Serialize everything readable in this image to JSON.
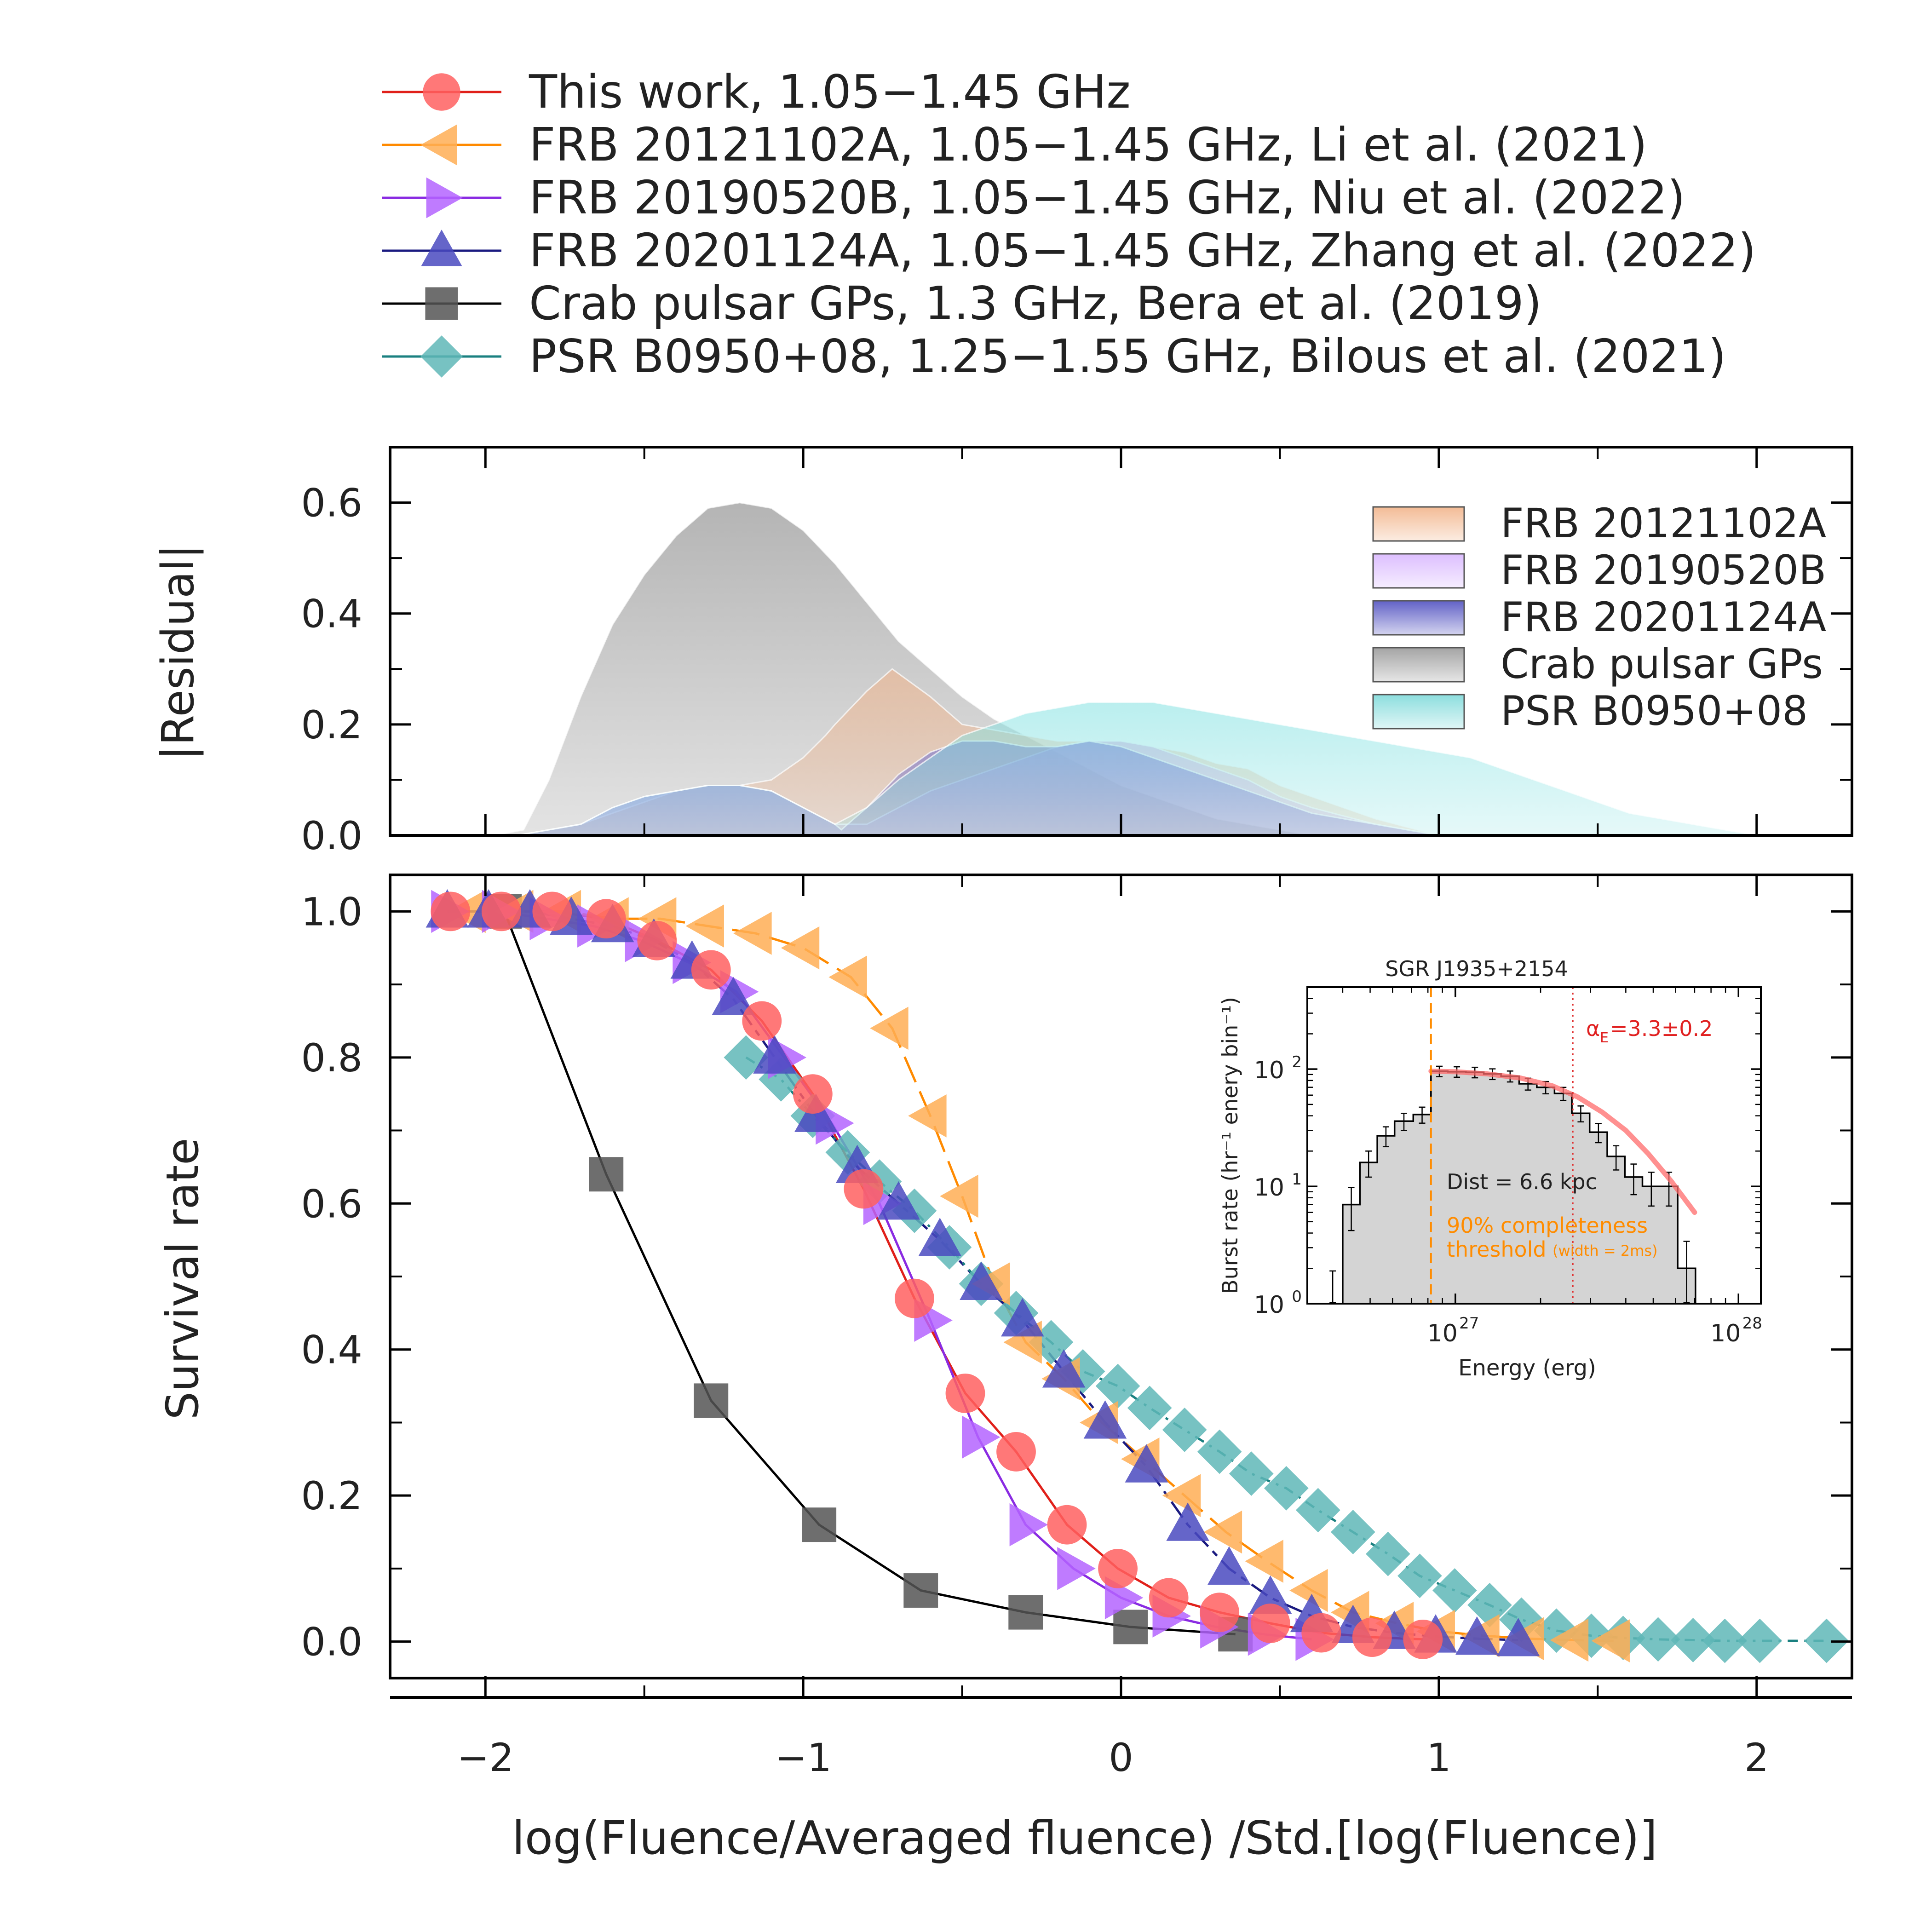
{
  "chart_data": [
    {
      "type": "area",
      "name": "residual-panel",
      "ylabel": "|Residual|",
      "xlim": [
        -2.3,
        2.3
      ],
      "ylim": [
        0.0,
        0.7
      ],
      "yticks": [
        0.0,
        0.2,
        0.4,
        0.6
      ],
      "ytick_labels": [
        "0.0",
        "0.2",
        "0.4",
        "0.6"
      ],
      "legend": [
        {
          "name": "FRB 20121102A",
          "color": "#f2b48a"
        },
        {
          "name": "FRB 20190520B",
          "color": "#d9b7ff"
        },
        {
          "name": "FRB 20201124A",
          "color": "#5050c0"
        },
        {
          "name": "Crab pulsar GPs",
          "color": "#9a9a9a"
        },
        {
          "name": "PSR B0950+08",
          "color": "#7fdada"
        }
      ],
      "series": [
        {
          "name": "Crab pulsar GPs",
          "color": "#a8a8a8",
          "x": [
            -1.97,
            -1.88,
            -1.8,
            -1.7,
            -1.6,
            -1.5,
            -1.4,
            -1.3,
            -1.2,
            -1.1,
            -1.0,
            -0.9,
            -0.8,
            -0.7,
            -0.6,
            -0.5,
            -0.4,
            -0.3,
            -0.2,
            -0.1,
            0.0,
            0.1,
            0.2,
            0.3,
            0.4,
            0.5,
            0.6
          ],
          "y": [
            0.0,
            0.01,
            0.1,
            0.25,
            0.38,
            0.47,
            0.54,
            0.59,
            0.6,
            0.59,
            0.55,
            0.49,
            0.42,
            0.35,
            0.3,
            0.25,
            0.21,
            0.18,
            0.15,
            0.12,
            0.09,
            0.07,
            0.05,
            0.03,
            0.02,
            0.01,
            0.0
          ]
        },
        {
          "name": "FRB 20121102A",
          "color": "#f2b48a",
          "x": [
            -1.97,
            -1.9,
            -1.7,
            -1.6,
            -1.5,
            -1.4,
            -1.3,
            -1.2,
            -1.1,
            -1.0,
            -0.93,
            -0.9,
            -0.8,
            -0.72,
            -0.6,
            -0.5,
            -0.4,
            -0.3,
            -0.2,
            -0.1,
            0.0,
            0.1,
            0.2,
            0.3,
            0.4,
            0.5,
            0.6,
            0.8,
            1.0
          ],
          "y": [
            0.0,
            0.0,
            0.02,
            0.04,
            0.06,
            0.08,
            0.09,
            0.09,
            0.1,
            0.14,
            0.18,
            0.2,
            0.26,
            0.3,
            0.25,
            0.2,
            0.19,
            0.18,
            0.17,
            0.17,
            0.17,
            0.16,
            0.15,
            0.13,
            0.12,
            0.09,
            0.07,
            0.03,
            0.0
          ]
        },
        {
          "name": "FRB 20190520B",
          "color": "#d9b7ff",
          "x": [
            -1.97,
            -1.9,
            -1.7,
            -1.6,
            -1.5,
            -1.4,
            -1.3,
            -1.2,
            -1.1,
            -1.0,
            -0.9,
            -0.8,
            -0.7,
            -0.6,
            -0.5,
            -0.4,
            -0.3,
            -0.2,
            -0.1,
            0.0,
            0.1,
            0.2,
            0.3,
            0.4,
            0.5,
            0.6,
            0.8,
            1.0
          ],
          "y": [
            0.0,
            0.0,
            0.02,
            0.05,
            0.07,
            0.08,
            0.09,
            0.09,
            0.08,
            0.05,
            0.02,
            0.02,
            0.05,
            0.08,
            0.1,
            0.12,
            0.14,
            0.16,
            0.17,
            0.17,
            0.16,
            0.14,
            0.12,
            0.1,
            0.07,
            0.05,
            0.02,
            0.0
          ]
        },
        {
          "name": "FRB 20201124A",
          "color": "#6a6ad0",
          "x": [
            -1.97,
            -1.9,
            -1.7,
            -1.6,
            -1.5,
            -1.4,
            -1.3,
            -1.2,
            -1.1,
            -1.0,
            -0.9,
            -0.88,
            -0.8,
            -0.7,
            -0.6,
            -0.5,
            -0.4,
            -0.3,
            -0.2,
            -0.1,
            0.0,
            0.1,
            0.2,
            0.3,
            0.4,
            0.5,
            0.6,
            0.8,
            1.0
          ],
          "y": [
            0.0,
            0.0,
            0.02,
            0.05,
            0.07,
            0.08,
            0.09,
            0.09,
            0.08,
            0.05,
            0.02,
            0.01,
            0.05,
            0.11,
            0.15,
            0.17,
            0.17,
            0.16,
            0.16,
            0.17,
            0.16,
            0.14,
            0.12,
            0.1,
            0.08,
            0.06,
            0.04,
            0.02,
            0.0
          ]
        },
        {
          "name": "PSR B0950+08",
          "color": "#86e2e2",
          "x": [
            -1.97,
            -1.9,
            -1.7,
            -1.6,
            -1.5,
            -1.4,
            -1.3,
            -1.2,
            -1.1,
            -1.0,
            -0.9,
            -0.8,
            -0.7,
            -0.6,
            -0.5,
            -0.4,
            -0.3,
            -0.2,
            -0.1,
            0.0,
            0.1,
            0.2,
            0.3,
            0.4,
            0.5,
            0.6,
            0.7,
            0.8,
            0.9,
            1.0,
            1.1,
            1.2,
            1.3,
            1.4,
            1.5,
            1.6,
            1.7,
            1.8,
            1.9,
            2.0
          ],
          "y": [
            0.0,
            0.0,
            0.02,
            0.05,
            0.07,
            0.08,
            0.09,
            0.09,
            0.08,
            0.05,
            0.02,
            0.05,
            0.1,
            0.14,
            0.18,
            0.2,
            0.22,
            0.23,
            0.24,
            0.24,
            0.24,
            0.23,
            0.22,
            0.21,
            0.2,
            0.19,
            0.18,
            0.17,
            0.16,
            0.15,
            0.14,
            0.12,
            0.1,
            0.08,
            0.06,
            0.04,
            0.03,
            0.02,
            0.01,
            0.0
          ]
        }
      ]
    },
    {
      "type": "line",
      "name": "survival-panel",
      "xlabel": "log(Fluence/Averaged fluence) /Std.[log(Fluence)]",
      "ylabel": "Survival rate",
      "xlim": [
        -2.3,
        2.3
      ],
      "ylim": [
        -0.05,
        1.05
      ],
      "xticks": [
        -2,
        -1,
        0,
        1,
        2
      ],
      "xtick_labels": [
        "−2",
        "−1",
        "0",
        "1",
        "2"
      ],
      "yticks": [
        0.0,
        0.2,
        0.4,
        0.6,
        0.8,
        1.0
      ],
      "ytick_labels": [
        "0.0",
        "0.2",
        "0.4",
        "0.6",
        "0.8",
        "1.0"
      ],
      "series": [
        {
          "name": "This work, 1.05−1.45 GHz",
          "marker": "circle",
          "color": "#ff6060",
          "line": "#e0201a",
          "dash": "",
          "x": [
            -2.11,
            -1.95,
            -1.79,
            -1.62,
            -1.46,
            -1.29,
            -1.13,
            -0.97,
            -0.81,
            -0.65,
            -0.49,
            -0.33,
            -0.17,
            -0.01,
            0.15,
            0.31,
            0.47,
            0.63,
            0.79,
            0.95
          ],
          "y": [
            1.0,
            1.0,
            1.0,
            0.99,
            0.96,
            0.92,
            0.85,
            0.75,
            0.62,
            0.47,
            0.34,
            0.26,
            0.16,
            0.1,
            0.06,
            0.04,
            0.025,
            0.012,
            0.006,
            0.003
          ]
        },
        {
          "name": "FRB 20121102A, 1.05−1.45 GHz, Li et al. (2021)",
          "marker": "triangle-left",
          "color": "#ffae55",
          "line": "#ff8a00",
          "dash": "60,22",
          "x": [
            -2.05,
            -1.9,
            -1.75,
            -1.6,
            -1.45,
            -1.3,
            -1.15,
            -1.0,
            -0.85,
            -0.72,
            -0.6,
            -0.5,
            -0.4,
            -0.3,
            -0.18,
            -0.06,
            0.07,
            0.2,
            0.33,
            0.46,
            0.6,
            0.73,
            0.87,
            1.0,
            1.14,
            1.28,
            1.42,
            1.55
          ],
          "y": [
            1.0,
            1.0,
            1.0,
            0.99,
            0.99,
            0.98,
            0.97,
            0.95,
            0.91,
            0.84,
            0.72,
            0.61,
            0.49,
            0.41,
            0.36,
            0.3,
            0.25,
            0.2,
            0.15,
            0.11,
            0.07,
            0.04,
            0.025,
            0.014,
            0.008,
            0.004,
            0.002,
            0.001
          ]
        },
        {
          "name": "FRB 20190520B, 1.05−1.45 GHz, Niu et al. (2022)",
          "marker": "triangle-right",
          "color": "#b464ff",
          "line": "#8a2be2",
          "dash": "",
          "x": [
            -2.12,
            -1.96,
            -1.81,
            -1.66,
            -1.51,
            -1.36,
            -1.21,
            -1.06,
            -0.91,
            -0.76,
            -0.6,
            -0.45,
            -0.3,
            -0.15,
            0.0,
            0.15,
            0.3,
            0.45,
            0.6
          ],
          "y": [
            1.0,
            1.0,
            0.99,
            0.98,
            0.96,
            0.93,
            0.89,
            0.8,
            0.71,
            0.6,
            0.44,
            0.28,
            0.16,
            0.1,
            0.06,
            0.035,
            0.02,
            0.01,
            0.003
          ]
        },
        {
          "name": "FRB 20201124A, 1.05−1.45 GHz, Zhang et al. (2022)",
          "marker": "triangle-up",
          "color": "#4a4ac0",
          "line": "#1a1a80",
          "dash": "14,14,42,14",
          "x": [
            -2.12,
            -1.99,
            -1.86,
            -1.73,
            -1.6,
            -1.47,
            -1.35,
            -1.22,
            -1.09,
            -0.96,
            -0.83,
            -0.7,
            -0.57,
            -0.44,
            -0.31,
            -0.18,
            -0.05,
            0.08,
            0.21,
            0.34,
            0.47,
            0.6,
            0.73,
            0.86,
            0.99,
            1.12,
            1.25
          ],
          "y": [
            1.0,
            1.0,
            1.0,
            0.99,
            0.98,
            0.96,
            0.93,
            0.88,
            0.8,
            0.72,
            0.65,
            0.6,
            0.55,
            0.49,
            0.44,
            0.37,
            0.3,
            0.24,
            0.16,
            0.1,
            0.06,
            0.035,
            0.02,
            0.012,
            0.007,
            0.004,
            0.002
          ]
        },
        {
          "name": "Crab pulsar GPs, 1.3 GHz, Bera et al. (2019)",
          "marker": "square",
          "color": "#555555",
          "line": "#000000",
          "dash": "",
          "x": [
            -1.94,
            -1.62,
            -1.29,
            -0.95,
            -0.63,
            -0.3,
            0.03,
            0.36
          ],
          "y": [
            1.0,
            0.64,
            0.33,
            0.16,
            0.07,
            0.04,
            0.02,
            0.01
          ]
        },
        {
          "name": "PSR B0950+08, 1.25−1.55 GHz, Bilous et al. (2021)",
          "marker": "diamond",
          "color": "#5fb7b7",
          "line": "#1a8080",
          "dash": "22,14,6,14",
          "x": [
            -1.18,
            -1.07,
            -0.97,
            -0.86,
            -0.76,
            -0.65,
            -0.54,
            -0.44,
            -0.33,
            -0.22,
            -0.12,
            -0.01,
            0.09,
            0.2,
            0.31,
            0.41,
            0.52,
            0.62,
            0.73,
            0.84,
            0.94,
            1.05,
            1.16,
            1.26,
            1.37,
            1.48,
            1.58,
            1.69,
            1.8,
            1.9,
            2.01,
            2.22
          ],
          "y": [
            0.8,
            0.77,
            0.72,
            0.67,
            0.63,
            0.59,
            0.54,
            0.49,
            0.45,
            0.41,
            0.37,
            0.35,
            0.32,
            0.29,
            0.26,
            0.23,
            0.21,
            0.18,
            0.15,
            0.12,
            0.09,
            0.07,
            0.05,
            0.03,
            0.015,
            0.008,
            0.005,
            0.003,
            0.002,
            0.001,
            0.001,
            0.001
          ]
        }
      ]
    },
    {
      "type": "bar",
      "name": "inset-histogram",
      "title": "SGR J1935+2154",
      "xlabel": "Energy (erg)",
      "ylabel": "Burst rate (hr⁻¹ enery bin⁻¹)",
      "xscale": "log",
      "yscale": "log",
      "xlim": [
        3e+26,
        1.2e+28
      ],
      "ylim": [
        1,
        500
      ],
      "xtick_labels": [
        {
          "base": "10",
          "exp": "27",
          "value": 1e+27
        },
        {
          "base": "10",
          "exp": "28",
          "value": 1e+28
        }
      ],
      "ytick_labels": [
        {
          "base": "10",
          "exp": "0",
          "value": 1
        },
        {
          "base": "10",
          "exp": "1",
          "value": 10
        },
        {
          "base": "10",
          "exp": "2",
          "value": 100
        }
      ],
      "bin_edges": [
        3.4e+26,
        4e+26,
        4.6e+26,
        5.3e+26,
        6.1e+26,
        7.1e+26,
        8.2e+26,
        9.4e+26,
        1.09e+27,
        1.26e+27,
        1.45e+27,
        1.68e+27,
        1.94e+27,
        2.24e+27,
        2.58e+27,
        2.98e+27,
        3.44e+27,
        3.97e+27,
        4.58e+27,
        5.29e+27,
        6.1e+27,
        7.05e+27
      ],
      "values": [
        1.0,
        7.0,
        16.0,
        27.0,
        36.0,
        41.0,
        96.0,
        95.0,
        94.0,
        91.0,
        87.0,
        75.0,
        70.0,
        62.0,
        42.0,
        29.0,
        18.0,
        12.0,
        10.0,
        10.0,
        2.0
      ],
      "errors": [
        0.9,
        2.8,
        4.0,
        5.2,
        6.0,
        6.4,
        9.8,
        9.7,
        9.7,
        9.5,
        9.3,
        8.7,
        8.4,
        7.9,
        6.5,
        5.4,
        4.2,
        3.5,
        3.2,
        3.2,
        1.4
      ],
      "fit": {
        "color": "#ff6b6b",
        "alpha_label": "α",
        "alpha_sub": "E",
        "alpha_value": "=3.3±0.2",
        "x": [
          8.2e+26,
          1e+27,
          1.3e+27,
          1.7e+27,
          2.2e+27,
          2.7e+27,
          3.3e+27,
          4e+27,
          4.8e+27,
          5.8e+27,
          7e+27
        ],
        "y": [
          96,
          95,
          91,
          84,
          72,
          58,
          43,
          30,
          19,
          11,
          6
        ]
      },
      "threshold_line": {
        "x": 8.2e+26,
        "color": "#ff8c00"
      },
      "break_line": {
        "x": 2.6e+27,
        "color": "#e03030"
      },
      "annotations": {
        "distance": "Dist = 6.6 kpc",
        "completeness_1": "90% completeness",
        "completeness_2": "threshold",
        "completeness_3": "(width = 2ms)"
      }
    }
  ]
}
